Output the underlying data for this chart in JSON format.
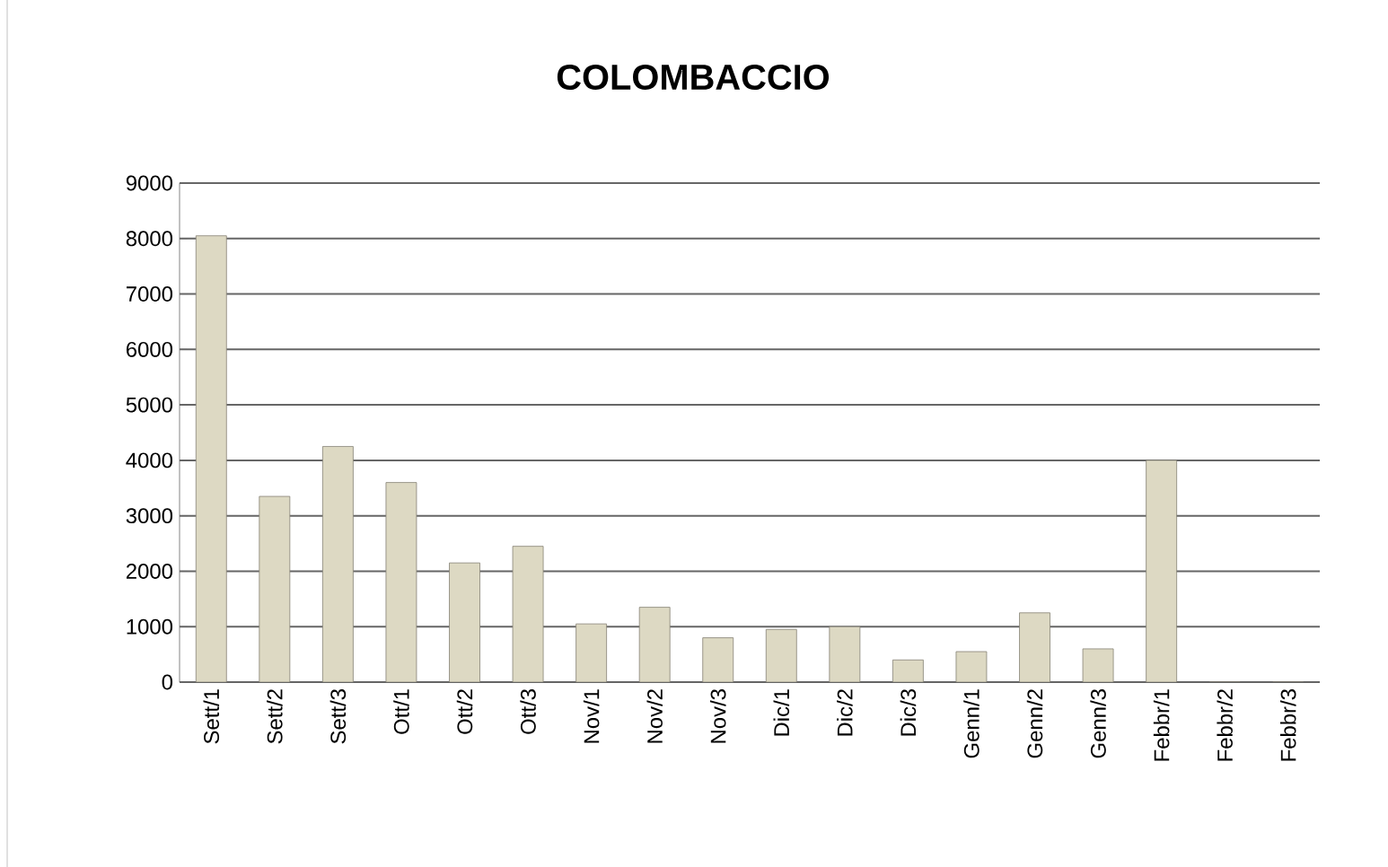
{
  "chart_data": {
    "type": "bar",
    "title": "COLOMBACCIO",
    "categories": [
      "Sett/1",
      "Sett/2",
      "Sett/3",
      "Ott/1",
      "Ott/2",
      "Ott/3",
      "Nov/1",
      "Nov/2",
      "Nov/3",
      "Dic/1",
      "Dic/2",
      "Dic/3",
      "Genn/1",
      "Genn/2",
      "Genn/3",
      "Febbr/1",
      "Febbr/2",
      "Febbr/3"
    ],
    "values": [
      8050,
      3350,
      4250,
      3600,
      2150,
      2450,
      1050,
      1350,
      800,
      950,
      1000,
      400,
      550,
      1250,
      600,
      4000,
      0,
      0
    ],
    "color": "#ddd9c3",
    "ylim": [
      0,
      9000
    ],
    "yticks": [
      0,
      1000,
      2000,
      3000,
      4000,
      5000,
      6000,
      7000,
      8000,
      9000
    ],
    "grid": "y"
  }
}
